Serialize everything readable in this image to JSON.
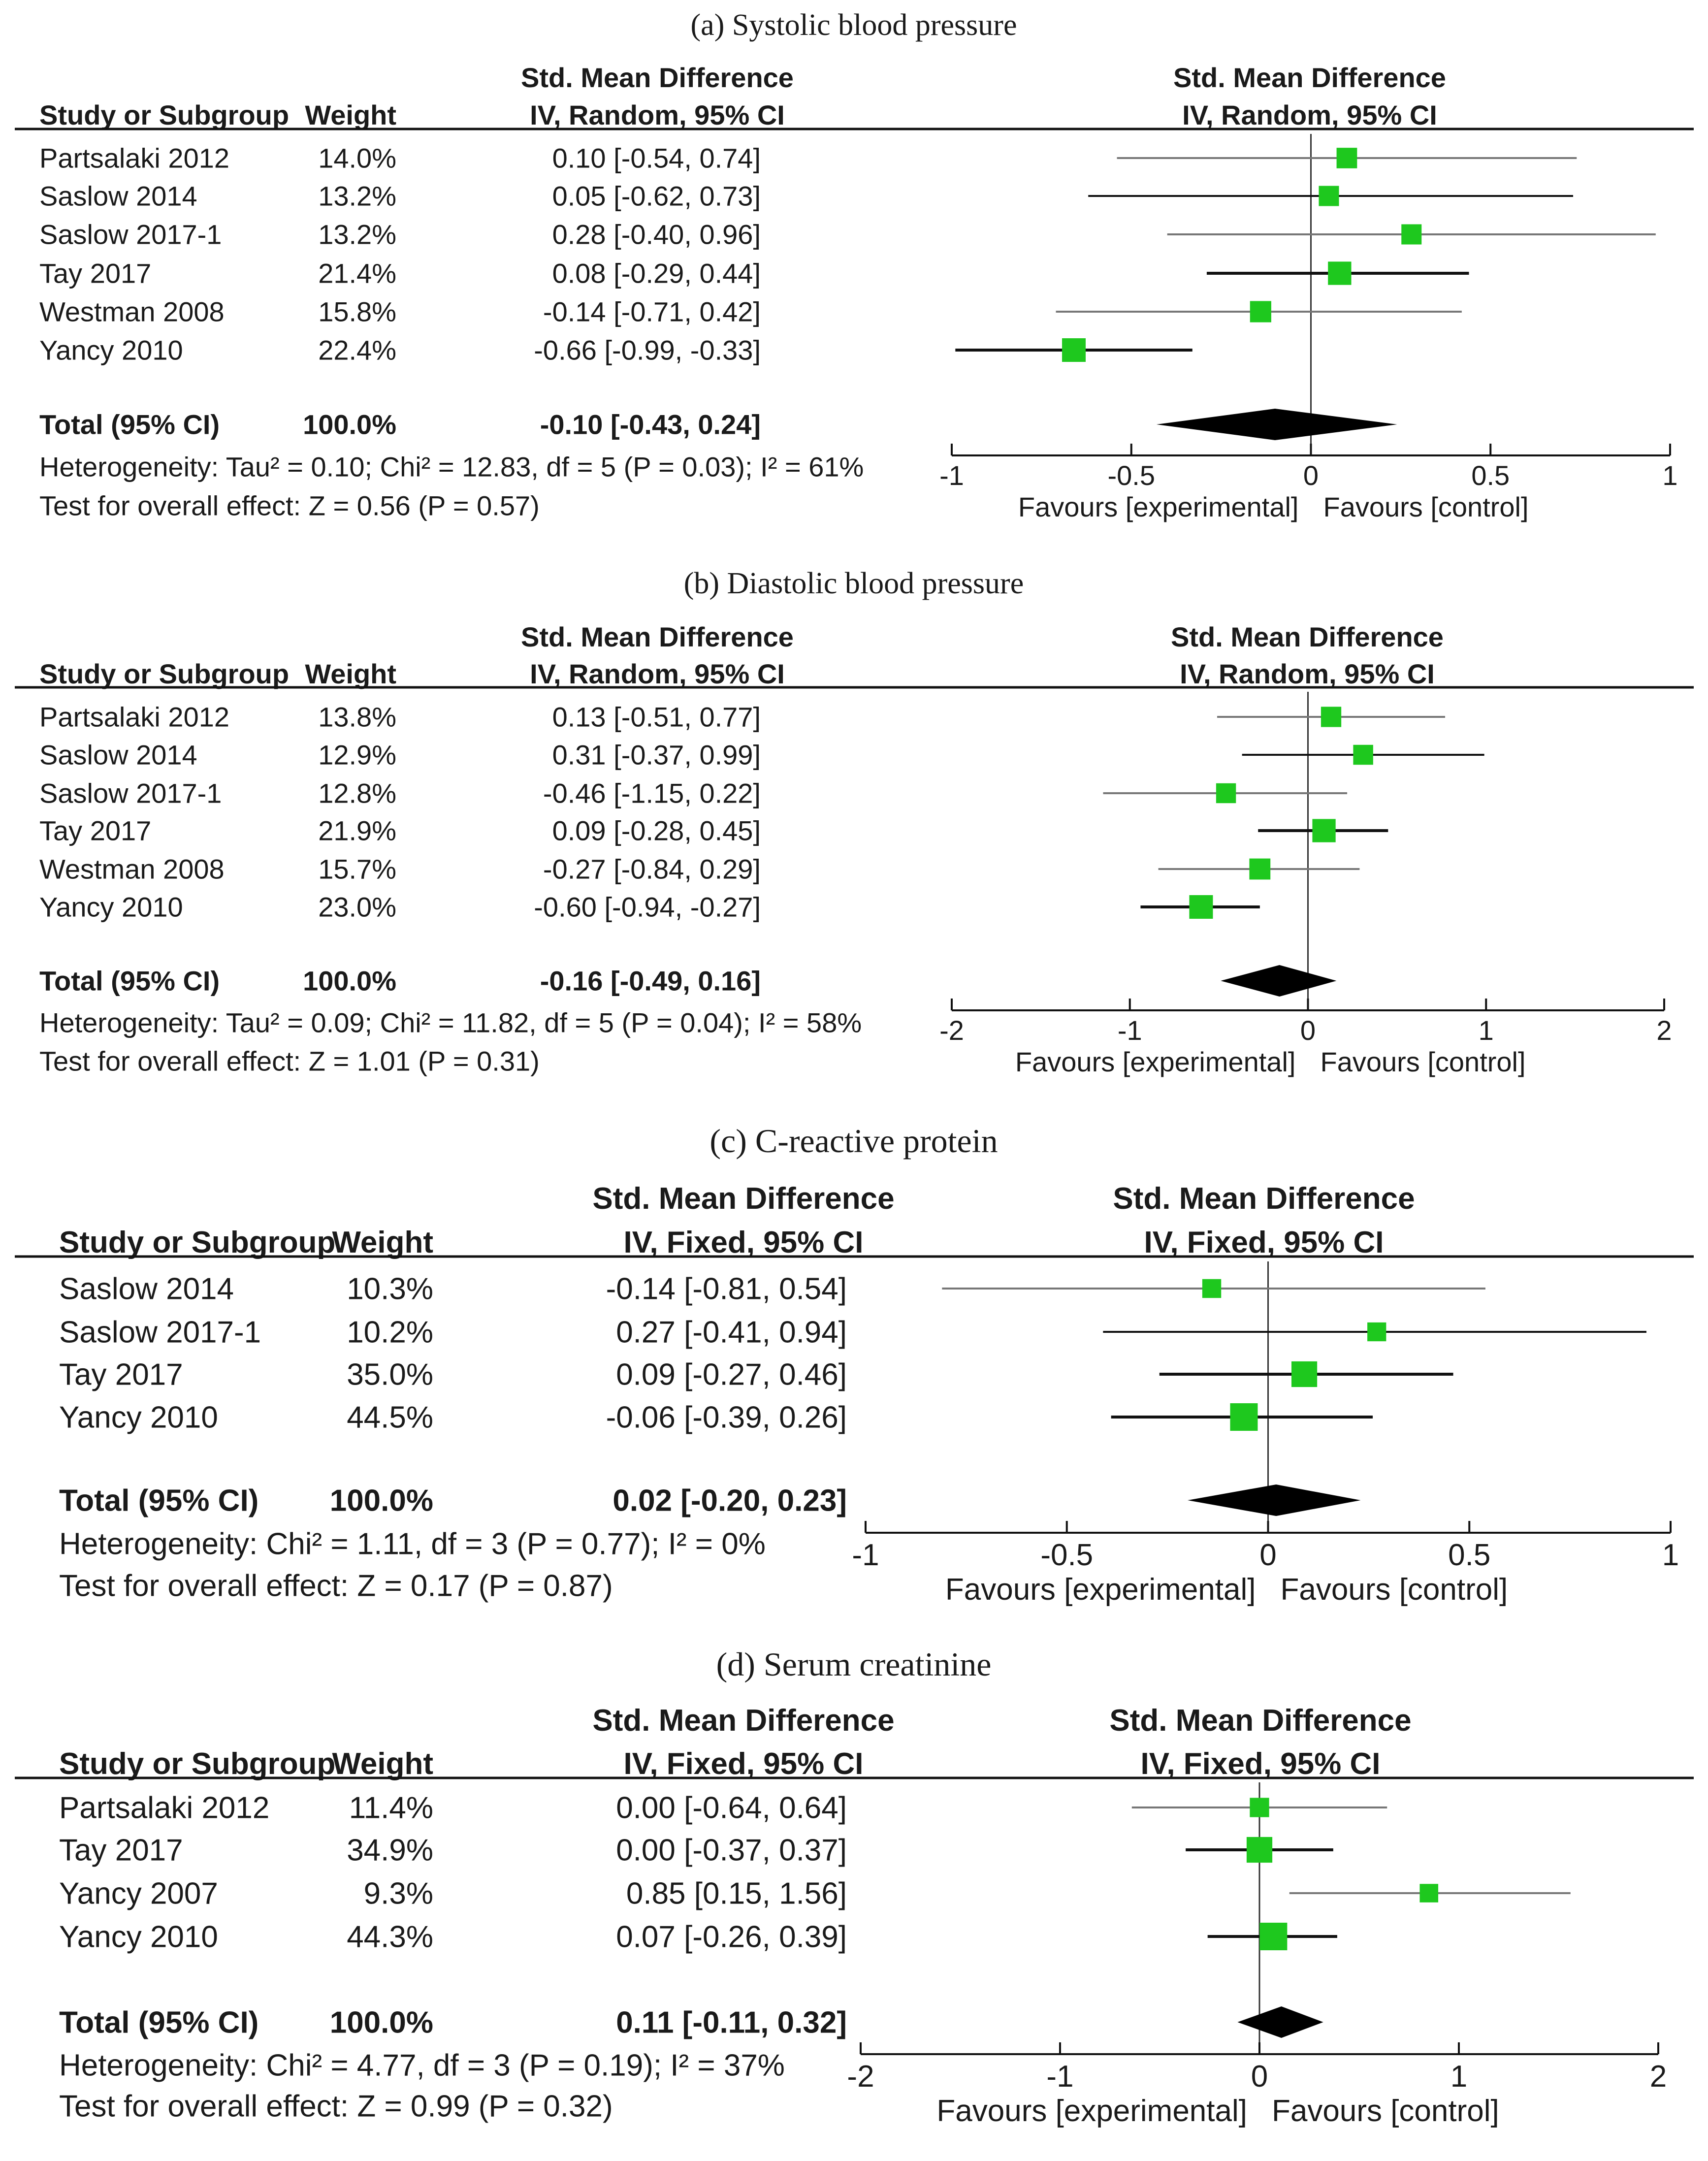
{
  "colors": {
    "marker": "#1ec81e",
    "line": "#111111",
    "ci_thin": "#777777",
    "text": "#1a1a1a"
  },
  "chart_data": [
    {
      "type": "forest",
      "title": "(a) Systolic blood pressure",
      "header": {
        "study": "Study or Subgroup",
        "weight": "Weight",
        "effect_group": "Std. Mean Difference",
        "effect_method": "IV, Random, 95% CI",
        "plot_group": "Std. Mean Difference",
        "plot_method": "IV, Random, 95% CI"
      },
      "studies": [
        {
          "name": "Partsalaki 2012",
          "weight": "14.0%",
          "ci_text": "0.10 [-0.54, 0.74]",
          "est": 0.1,
          "lo": -0.54,
          "hi": 0.74,
          "w": 14.0
        },
        {
          "name": "Saslow 2014",
          "weight": "13.2%",
          "ci_text": "0.05 [-0.62, 0.73]",
          "est": 0.05,
          "lo": -0.62,
          "hi": 0.73,
          "w": 13.2
        },
        {
          "name": "Saslow 2017-1",
          "weight": "13.2%",
          "ci_text": "0.28 [-0.40, 0.96]",
          "est": 0.28,
          "lo": -0.4,
          "hi": 0.96,
          "w": 13.2
        },
        {
          "name": "Tay 2017",
          "weight": "21.4%",
          "ci_text": "0.08 [-0.29, 0.44]",
          "est": 0.08,
          "lo": -0.29,
          "hi": 0.44,
          "w": 21.4
        },
        {
          "name": "Westman 2008",
          "weight": "15.8%",
          "ci_text": "-0.14 [-0.71, 0.42]",
          "est": -0.14,
          "lo": -0.71,
          "hi": 0.42,
          "w": 15.8
        },
        {
          "name": "Yancy 2010",
          "weight": "22.4%",
          "ci_text": "-0.66 [-0.99, -0.33]",
          "est": -0.66,
          "lo": -0.99,
          "hi": -0.33,
          "w": 22.4
        }
      ],
      "total": {
        "label": "Total (95% CI)",
        "weight": "100.0%",
        "ci_text": "-0.10 [-0.43, 0.24]",
        "est": -0.1,
        "lo": -0.43,
        "hi": 0.24
      },
      "heterogeneity": "Heterogeneity: Tau² = 0.10; Chi² = 12.83, df = 5 (P = 0.03); I² = 61%",
      "overall_effect": "Test for overall effect: Z = 0.56 (P = 0.57)",
      "xlim": [
        -1,
        1
      ],
      "ticks": [
        -1,
        -0.5,
        0,
        0.5,
        1
      ],
      "tick_labels": [
        "-1",
        "-0.5",
        "0",
        "0.5",
        "1"
      ],
      "favours_left": "Favours [experimental]",
      "favours_right": "Favours [control]"
    },
    {
      "type": "forest",
      "title": "(b) Diastolic blood pressure",
      "header": {
        "study": "Study or Subgroup",
        "weight": "Weight",
        "effect_group": "Std. Mean Difference",
        "effect_method": "IV, Random, 95% CI",
        "plot_group": "Std. Mean Difference",
        "plot_method": "IV, Random, 95% CI"
      },
      "studies": [
        {
          "name": "Partsalaki 2012",
          "weight": "13.8%",
          "ci_text": "0.13 [-0.51, 0.77]",
          "est": 0.13,
          "lo": -0.51,
          "hi": 0.77,
          "w": 13.8
        },
        {
          "name": "Saslow 2014",
          "weight": "12.9%",
          "ci_text": "0.31 [-0.37, 0.99]",
          "est": 0.31,
          "lo": -0.37,
          "hi": 0.99,
          "w": 12.9
        },
        {
          "name": "Saslow 2017-1",
          "weight": "12.8%",
          "ci_text": "-0.46 [-1.15, 0.22]",
          "est": -0.46,
          "lo": -1.15,
          "hi": 0.22,
          "w": 12.8
        },
        {
          "name": "Tay 2017",
          "weight": "21.9%",
          "ci_text": "0.09 [-0.28, 0.45]",
          "est": 0.09,
          "lo": -0.28,
          "hi": 0.45,
          "w": 21.9
        },
        {
          "name": "Westman 2008",
          "weight": "15.7%",
          "ci_text": "-0.27 [-0.84, 0.29]",
          "est": -0.27,
          "lo": -0.84,
          "hi": 0.29,
          "w": 15.7
        },
        {
          "name": "Yancy 2010",
          "weight": "23.0%",
          "ci_text": "-0.60 [-0.94, -0.27]",
          "est": -0.6,
          "lo": -0.94,
          "hi": -0.27,
          "w": 23.0
        }
      ],
      "total": {
        "label": "Total (95% CI)",
        "weight": "100.0%",
        "ci_text": "-0.16 [-0.49, 0.16]",
        "est": -0.16,
        "lo": -0.49,
        "hi": 0.16
      },
      "heterogeneity": "Heterogeneity: Tau² = 0.09; Chi² = 11.82, df = 5 (P = 0.04); I² = 58%",
      "overall_effect": "Test for overall effect: Z = 1.01 (P = 0.31)",
      "xlim": [
        -2,
        2
      ],
      "ticks": [
        -2,
        -1,
        0,
        1,
        2
      ],
      "tick_labels": [
        "-2",
        "-1",
        "0",
        "1",
        "2"
      ],
      "favours_left": "Favours [experimental]",
      "favours_right": "Favours [control]"
    },
    {
      "type": "forest",
      "title": "(c) C-reactive protein",
      "header": {
        "study": "Study or Subgroup",
        "weight": "Weight",
        "effect_group": "Std. Mean Difference",
        "effect_method": "IV, Fixed, 95% CI",
        "plot_group": "Std. Mean Difference",
        "plot_method": "IV, Fixed, 95% CI"
      },
      "studies": [
        {
          "name": "Saslow 2014",
          "weight": "10.3%",
          "ci_text": "-0.14 [-0.81, 0.54]",
          "est": -0.14,
          "lo": -0.81,
          "hi": 0.54,
          "w": 10.3
        },
        {
          "name": "Saslow 2017-1",
          "weight": "10.2%",
          "ci_text": "0.27 [-0.41, 0.94]",
          "est": 0.27,
          "lo": -0.41,
          "hi": 0.94,
          "w": 10.2
        },
        {
          "name": "Tay 2017",
          "weight": "35.0%",
          "ci_text": "0.09 [-0.27, 0.46]",
          "est": 0.09,
          "lo": -0.27,
          "hi": 0.46,
          "w": 35.0
        },
        {
          "name": "Yancy 2010",
          "weight": "44.5%",
          "ci_text": "-0.06 [-0.39, 0.26]",
          "est": -0.06,
          "lo": -0.39,
          "hi": 0.26,
          "w": 44.5
        }
      ],
      "total": {
        "label": "Total (95% CI)",
        "weight": "100.0%",
        "ci_text": "0.02 [-0.20, 0.23]",
        "est": 0.02,
        "lo": -0.2,
        "hi": 0.23
      },
      "heterogeneity": "Heterogeneity: Chi² = 1.11, df = 3 (P = 0.77); I² = 0%",
      "overall_effect": "Test for overall effect: Z = 0.17 (P = 0.87)",
      "xlim": [
        -1,
        1
      ],
      "ticks": [
        -1,
        -0.5,
        0,
        0.5,
        1
      ],
      "tick_labels": [
        "-1",
        "-0.5",
        "0",
        "0.5",
        "1"
      ],
      "favours_left": "Favours [experimental]",
      "favours_right": "Favours [control]"
    },
    {
      "type": "forest",
      "title": "(d) Serum creatinine",
      "header": {
        "study": "Study or Subgroup",
        "weight": "Weight",
        "effect_group": "Std. Mean Difference",
        "effect_method": "IV, Fixed, 95% CI",
        "plot_group": "Std. Mean Difference",
        "plot_method": "IV, Fixed, 95% CI"
      },
      "studies": [
        {
          "name": "Partsalaki 2012",
          "weight": "11.4%",
          "ci_text": "0.00 [-0.64, 0.64]",
          "est": 0.0,
          "lo": -0.64,
          "hi": 0.64,
          "w": 11.4
        },
        {
          "name": "Tay 2017",
          "weight": "34.9%",
          "ci_text": "0.00 [-0.37, 0.37]",
          "est": 0.0,
          "lo": -0.37,
          "hi": 0.37,
          "w": 34.9
        },
        {
          "name": "Yancy 2007",
          "weight": "9.3%",
          "ci_text": "0.85 [0.15, 1.56]",
          "est": 0.85,
          "lo": 0.15,
          "hi": 1.56,
          "w": 9.3
        },
        {
          "name": "Yancy 2010",
          "weight": "44.3%",
          "ci_text": "0.07 [-0.26, 0.39]",
          "est": 0.07,
          "lo": -0.26,
          "hi": 0.39,
          "w": 44.3
        }
      ],
      "total": {
        "label": "Total (95% CI)",
        "weight": "100.0%",
        "ci_text": "0.11 [-0.11, 0.32]",
        "est": 0.11,
        "lo": -0.11,
        "hi": 0.32
      },
      "heterogeneity": "Heterogeneity: Chi² = 4.77, df = 3 (P = 0.19); I² = 37%",
      "overall_effect": "Test for overall effect: Z = 0.99 (P = 0.32)",
      "xlim": [
        -2,
        2
      ],
      "ticks": [
        -2,
        -1,
        0,
        1,
        2
      ],
      "tick_labels": [
        "-2",
        "-1",
        "0",
        "1",
        "2"
      ],
      "favours_left": "Favours [experimental]",
      "favours_right": "Favours [control]"
    }
  ]
}
